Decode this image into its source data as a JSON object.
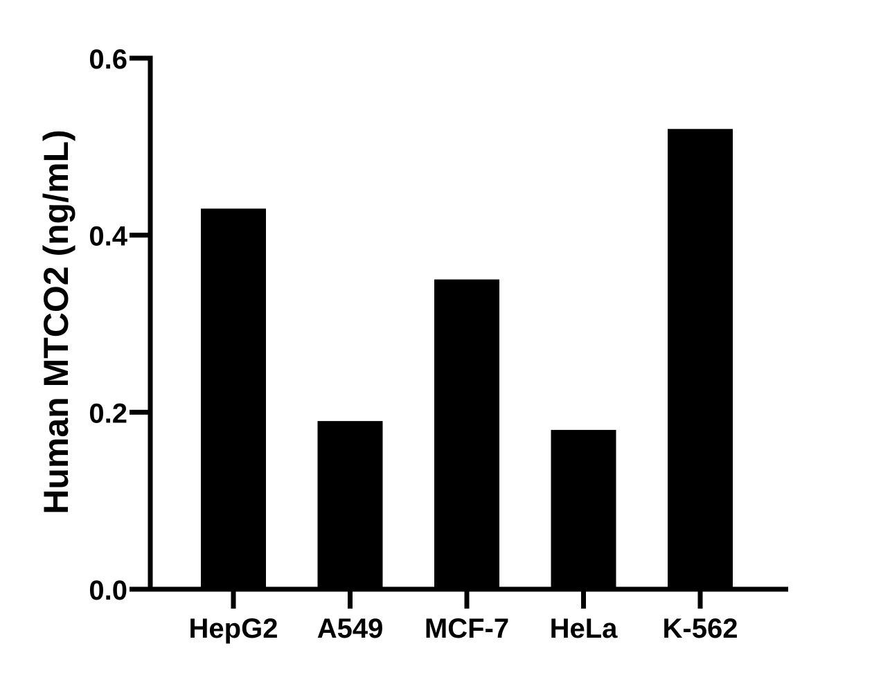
{
  "chart_data": {
    "type": "bar",
    "title": "",
    "xlabel": "",
    "ylabel": "Human MTCO2 (ng/mL)",
    "categories": [
      "HepG2",
      "A549",
      "MCF-7",
      "HeLa",
      "K-562"
    ],
    "values": [
      0.43,
      0.19,
      0.35,
      0.18,
      0.52
    ],
    "ylim": [
      0,
      0.6
    ],
    "yticks": [
      "0.0",
      "0.2",
      "0.4",
      "0.6"
    ],
    "ytick_values": [
      0,
      0.2,
      0.4,
      0.6
    ],
    "grid": false,
    "legend": "none",
    "bar_color": "#000000",
    "axis_color": "#000000"
  }
}
